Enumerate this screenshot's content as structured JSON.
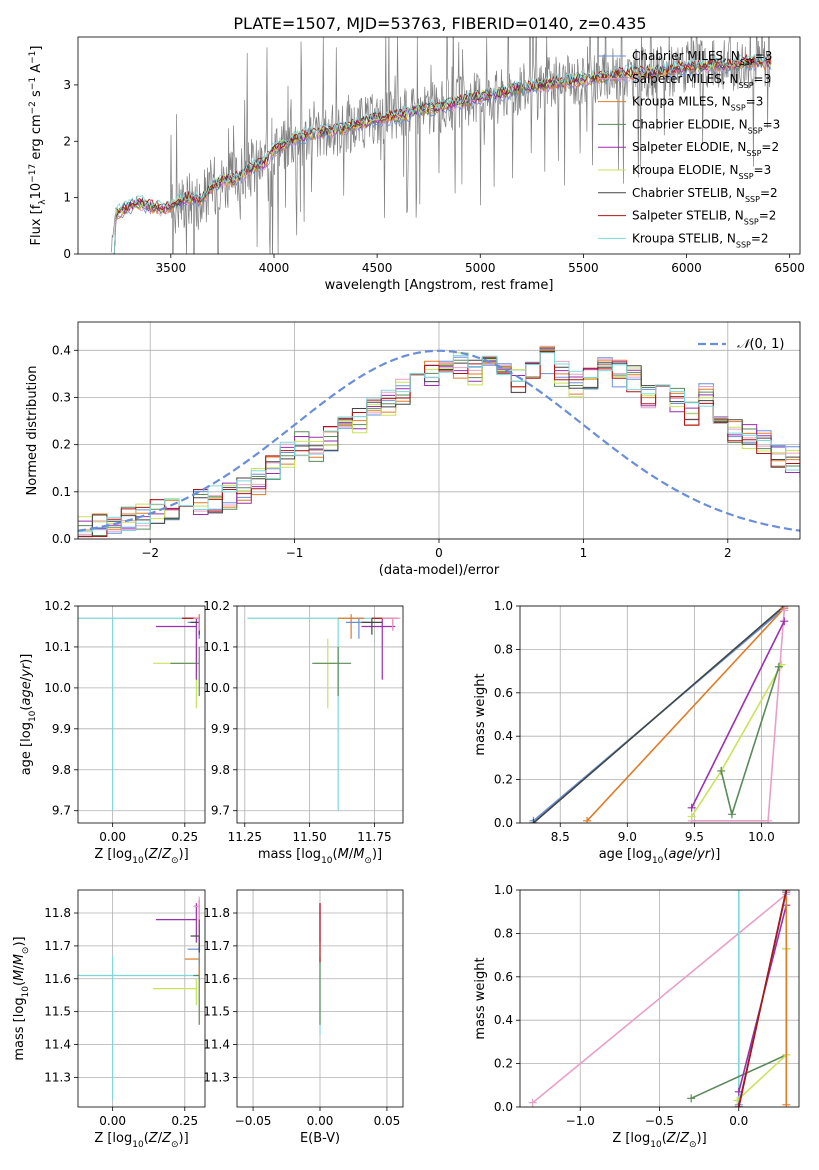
{
  "title": "PLATE=1507, MJD=53763, FIBERID=0140, z=0.435",
  "colors": {
    "chabrier_miles": "#6a8fd8",
    "salpeter_miles": "#e9a0c8",
    "kroupa_miles": "#e07b26",
    "chabrier_elodie": "#5a8a5a",
    "salpeter_elodie": "#9a2fb0",
    "kroupa_elodie": "#c9e35a",
    "chabrier_stelib": "#444444",
    "salpeter_stelib": "#b01515",
    "kroupa_stelib": "#7dd8dc",
    "data": "#808080",
    "gauss": "#6a8fd8",
    "grid": "#b0b0b0"
  },
  "chart_data": [
    {
      "id": "spectrum",
      "type": "line",
      "xlabel": "wavelength [Angstrom, rest frame]",
      "ylabel": "Flux [f_λ 10^-17 erg cm^-2 s^-1 A^-1]",
      "xlim": [
        3050,
        6550
      ],
      "ylim": [
        0,
        3.85
      ],
      "xticks": [
        3500,
        4000,
        4500,
        5000,
        5500,
        6000,
        6500
      ],
      "yticks": [
        0,
        1,
        2,
        3
      ],
      "continuum": {
        "x": [
          3210,
          3230,
          3250,
          3300,
          3350,
          3400,
          3450,
          3500,
          3550,
          3600,
          3650,
          3700,
          3750,
          3800,
          3850,
          3900,
          3950,
          4000,
          4100,
          4200,
          4300,
          4400,
          4500,
          4600,
          4700,
          4800,
          4900,
          5000,
          5100,
          5200,
          5300,
          5400,
          5500,
          5600,
          5700,
          5800,
          5900,
          6000,
          6100,
          6200,
          6300,
          6400
        ],
        "y": [
          0,
          0.7,
          0.75,
          0.85,
          0.9,
          0.85,
          0.8,
          0.85,
          0.95,
          1.0,
          0.95,
          1.2,
          1.3,
          1.3,
          1.4,
          1.55,
          1.6,
          1.85,
          2.05,
          2.15,
          2.2,
          2.3,
          2.4,
          2.45,
          2.55,
          2.6,
          2.7,
          2.8,
          2.85,
          2.95,
          3.0,
          3.05,
          3.1,
          3.15,
          3.2,
          3.2,
          3.25,
          3.3,
          3.35,
          3.35,
          3.4,
          3.4
        ]
      },
      "legend": [
        {
          "label": "Chabrier MILES",
          "nssp": "3",
          "key": "chabrier_miles"
        },
        {
          "label": "Salpeter MILES",
          "nssp": "3",
          "key": "salpeter_miles"
        },
        {
          "label": "Kroupa MILES",
          "nssp": "3",
          "key": "kroupa_miles"
        },
        {
          "label": "Chabrier ELODIE",
          "nssp": "3",
          "key": "chabrier_elodie"
        },
        {
          "label": "Salpeter ELODIE",
          "nssp": "2",
          "key": "salpeter_elodie"
        },
        {
          "label": "Kroupa ELODIE",
          "nssp": "3",
          "key": "kroupa_elodie"
        },
        {
          "label": "Chabrier STELIB",
          "nssp": "2",
          "key": "chabrier_stelib"
        },
        {
          "label": "Salpeter STELIB",
          "nssp": "2",
          "key": "salpeter_stelib"
        },
        {
          "label": "Kroupa STELIB",
          "nssp": "2",
          "key": "kroupa_stelib"
        }
      ],
      "legend_position": "right"
    },
    {
      "id": "residuals",
      "type": "histogram",
      "xlabel": "(data-model)/error",
      "ylabel": "Normed distribution",
      "xlim": [
        -2.5,
        2.5
      ],
      "ylim": [
        0,
        0.46
      ],
      "xticks": [
        -2,
        -1,
        0,
        1,
        2
      ],
      "yticks": [
        0.0,
        0.1,
        0.2,
        0.3,
        0.4
      ],
      "gauss_label": "N(0,1)",
      "bin_edges_start": -2.5,
      "bin_width": 0.1,
      "base_heights": [
        0.02,
        0.025,
        0.03,
        0.04,
        0.05,
        0.06,
        0.065,
        0.07,
        0.075,
        0.085,
        0.09,
        0.1,
        0.12,
        0.15,
        0.18,
        0.2,
        0.19,
        0.21,
        0.23,
        0.25,
        0.27,
        0.29,
        0.31,
        0.33,
        0.35,
        0.36,
        0.37,
        0.35,
        0.38,
        0.36,
        0.34,
        0.36,
        0.38,
        0.35,
        0.33,
        0.34,
        0.36,
        0.35,
        0.34,
        0.3,
        0.31,
        0.29,
        0.27,
        0.3,
        0.26,
        0.23,
        0.22,
        0.2,
        0.18,
        0.17,
        0.15,
        0.14,
        0.12,
        0.11,
        0.1,
        0.08,
        0.07,
        0.06,
        0.055,
        0.05
      ],
      "legend_position": "top-right"
    },
    {
      "id": "age_vs_Z",
      "type": "errorbar",
      "xlabel": "Z [log10(Z/Z_sun)]",
      "ylabel": "age  [log10(age/yr)]",
      "xlim": [
        -0.12,
        0.32
      ],
      "ylim": [
        9.67,
        10.2
      ],
      "xticks": [
        0.0,
        0.25
      ],
      "yticks": [
        9.7,
        9.8,
        9.9,
        10.0,
        10.1,
        10.2
      ],
      "points": [
        {
          "key": "kroupa_stelib",
          "x": 0.0,
          "xerr": [
            0.12,
            0.3
          ],
          "y": 10.17,
          "yerr": [
            0.47,
            0.0
          ]
        },
        {
          "key": "kroupa_elodie",
          "x": 0.29,
          "xerr": [
            0.15,
            0.0
          ],
          "y": 10.06,
          "yerr": [
            0.11,
            0.05
          ]
        },
        {
          "key": "chabrier_elodie",
          "x": 0.3,
          "xerr": [
            0.1,
            0.0
          ],
          "y": 10.06,
          "yerr": [
            0.08,
            0.04
          ]
        },
        {
          "key": "salpeter_elodie",
          "x": 0.29,
          "xerr": [
            0.14,
            0.0
          ],
          "y": 10.15,
          "yerr": [
            0.13,
            0.02
          ]
        },
        {
          "key": "kroupa_miles",
          "x": 0.3,
          "xerr": [
            0.05,
            0.0
          ],
          "y": 10.17,
          "yerr": [
            0.05,
            0.01
          ]
        },
        {
          "key": "chabrier_miles",
          "x": 0.3,
          "xerr": [
            0.04,
            0.0
          ],
          "y": 10.16,
          "yerr": [
            0.04,
            0.01
          ]
        },
        {
          "key": "salpeter_stelib",
          "x": 0.3,
          "xerr": [
            0.06,
            0.0
          ],
          "y": 10.17,
          "yerr": [
            0.03,
            0.0
          ]
        },
        {
          "key": "chabrier_stelib",
          "x": 0.3,
          "xerr": [
            0.03,
            0.0
          ],
          "y": 10.16,
          "yerr": [
            0.03,
            0.01
          ]
        },
        {
          "key": "salpeter_miles",
          "x": 0.3,
          "xerr": [
            0.02,
            0.0
          ],
          "y": 10.17,
          "yerr": [
            0.03,
            0.0
          ]
        }
      ]
    },
    {
      "id": "age_vs_mass",
      "type": "errorbar",
      "xlabel": "mass [log10(M/M_sun)]",
      "ylabel": "",
      "xlim": [
        11.22,
        11.86
      ],
      "ylim": [
        9.67,
        10.2
      ],
      "xticks": [
        11.25,
        11.5,
        11.75
      ],
      "yticks": [
        9.7,
        9.8,
        9.9,
        10.0,
        10.1,
        10.2
      ],
      "points": [
        {
          "key": "kroupa_stelib",
          "x": 11.61,
          "xerr": [
            0.35,
            0.2
          ],
          "y": 10.17,
          "yerr": [
            0.47,
            0.0
          ]
        },
        {
          "key": "kroupa_elodie",
          "x": 11.57,
          "xerr": [
            0.05,
            0.03
          ],
          "y": 10.06,
          "yerr": [
            0.11,
            0.06
          ]
        },
        {
          "key": "chabrier_elodie",
          "x": 11.61,
          "xerr": [
            0.1,
            0.05
          ],
          "y": 10.06,
          "yerr": [
            0.08,
            0.04
          ]
        },
        {
          "key": "salpeter_elodie",
          "x": 11.78,
          "xerr": [
            0.08,
            0.05
          ],
          "y": 10.15,
          "yerr": [
            0.13,
            0.02
          ]
        },
        {
          "key": "kroupa_miles",
          "x": 11.66,
          "xerr": [
            0.05,
            0.05
          ],
          "y": 10.17,
          "yerr": [
            0.05,
            0.01
          ]
        },
        {
          "key": "chabrier_miles",
          "x": 11.69,
          "xerr": [
            0.05,
            0.04
          ],
          "y": 10.16,
          "yerr": [
            0.04,
            0.01
          ]
        },
        {
          "key": "salpeter_stelib",
          "x": 11.82,
          "xerr": [
            0.08,
            0.02
          ],
          "y": 10.17,
          "yerr": [
            0.03,
            0.0
          ]
        },
        {
          "key": "chabrier_stelib",
          "x": 11.74,
          "xerr": [
            0.04,
            0.04
          ],
          "y": 10.16,
          "yerr": [
            0.03,
            0.01
          ]
        },
        {
          "key": "salpeter_miles",
          "x": 11.82,
          "xerr": [
            0.04,
            0.03
          ],
          "y": 10.17,
          "yerr": [
            0.03,
            0.0
          ]
        }
      ]
    },
    {
      "id": "mass_weight_vs_age",
      "type": "line",
      "xlabel": "age  [log10(age/yr)]",
      "ylabel": "mass weight",
      "xlim": [
        8.2,
        10.28
      ],
      "ylim": [
        0,
        1.0
      ],
      "xticks": [
        8.5,
        9.0,
        9.5,
        10.0
      ],
      "yticks": [
        0.0,
        0.2,
        0.4,
        0.6,
        0.8,
        1.0
      ],
      "series": [
        {
          "key": "chabrier_miles",
          "x": [
            8.3,
            10.17
          ],
          "y": [
            0.01,
            0.99
          ]
        },
        {
          "key": "kroupa_stelib",
          "x": [
            8.3,
            10.17
          ],
          "y": [
            0.0,
            1.0
          ]
        },
        {
          "key": "chabrier_stelib",
          "x": [
            8.3,
            10.17
          ],
          "y": [
            0.0,
            1.0
          ]
        },
        {
          "key": "kroupa_miles",
          "x": [
            8.7,
            10.17
          ],
          "y": [
            0.01,
            0.99
          ]
        },
        {
          "key": "salpeter_miles",
          "x": [
            9.48,
            10.05,
            10.17
          ],
          "y": [
            0.01,
            0.01,
            0.98
          ]
        },
        {
          "key": "salpeter_elodie",
          "x": [
            9.48,
            10.17
          ],
          "y": [
            0.07,
            0.93
          ]
        },
        {
          "key": "kroupa_elodie",
          "x": [
            9.48,
            9.7,
            10.15
          ],
          "y": [
            0.03,
            0.24,
            0.73
          ]
        },
        {
          "key": "chabrier_elodie",
          "x": [
            9.7,
            9.78,
            10.13
          ],
          "y": [
            0.24,
            0.04,
            0.72
          ]
        }
      ]
    },
    {
      "id": "mass_vs_Z",
      "type": "errorbar",
      "xlabel": "Z [log10(Z/Z_sun)]",
      "ylabel": "mass [log10(M/M_sun)]",
      "xlim": [
        -0.12,
        0.32
      ],
      "ylim": [
        11.21,
        11.87
      ],
      "xticks": [
        0.0,
        0.25
      ],
      "yticks": [
        11.3,
        11.4,
        11.5,
        11.6,
        11.7,
        11.8
      ],
      "points": [
        {
          "key": "kroupa_stelib",
          "x": 0.0,
          "xerr": [
            0.12,
            0.3
          ],
          "y": 11.61,
          "yerr": [
            0.38,
            0.06
          ]
        },
        {
          "key": "kroupa_elodie",
          "x": 0.29,
          "xerr": [
            0.15,
            0.0
          ],
          "y": 11.57,
          "yerr": [
            0.05,
            0.03
          ]
        },
        {
          "key": "chabrier_elodie",
          "x": 0.3,
          "xerr": [
            0.02,
            0.0
          ],
          "y": 11.61,
          "yerr": [
            0.15,
            0.05
          ]
        },
        {
          "key": "salpeter_elodie",
          "x": 0.29,
          "xerr": [
            0.14,
            0.0
          ],
          "y": 11.78,
          "yerr": [
            0.07,
            0.05
          ]
        },
        {
          "key": "kroupa_miles",
          "x": 0.3,
          "xerr": [
            0.05,
            0.0
          ],
          "y": 11.66,
          "yerr": [
            0.05,
            0.05
          ]
        },
        {
          "key": "chabrier_miles",
          "x": 0.3,
          "xerr": [
            0.04,
            0.0
          ],
          "y": 11.69,
          "yerr": [
            0.05,
            0.04
          ]
        },
        {
          "key": "salpeter_stelib",
          "x": 0.3,
          "xerr": [
            0.02,
            0.0
          ],
          "y": 11.82,
          "yerr": [
            0.05,
            0.02
          ]
        },
        {
          "key": "chabrier_stelib",
          "x": 0.3,
          "xerr": [
            0.03,
            0.0
          ],
          "y": 11.73,
          "yerr": [
            0.05,
            0.04
          ]
        },
        {
          "key": "salpeter_miles",
          "x": 0.3,
          "xerr": [
            0.02,
            0.0
          ],
          "y": 11.82,
          "yerr": [
            0.04,
            0.03
          ]
        }
      ]
    },
    {
      "id": "mass_vs_ebv",
      "type": "errorbar",
      "xlabel": "E(B-V)",
      "ylabel": "",
      "xlim": [
        -0.062,
        0.062
      ],
      "ylim": [
        11.21,
        11.87
      ],
      "xticks": [
        -0.05,
        0.0,
        0.05
      ],
      "yticks": [
        11.3,
        11.4,
        11.5,
        11.6,
        11.7,
        11.8
      ],
      "points": [
        {
          "key": "kroupa_stelib",
          "x": 0.0,
          "xerr": [
            0.0,
            0.0
          ],
          "y": 11.61,
          "yerr": [
            0.18,
            0.06
          ]
        },
        {
          "key": "chabrier_elodie",
          "x": 0.0,
          "xerr": [
            0.0,
            0.0
          ],
          "y": 11.61,
          "yerr": [
            0.15,
            0.05
          ]
        },
        {
          "key": "salpeter_elodie",
          "x": 0.0,
          "xerr": [
            0.0,
            0.0
          ],
          "y": 11.78,
          "yerr": [
            0.07,
            0.05
          ]
        },
        {
          "key": "salpeter_stelib",
          "x": 0.0,
          "xerr": [
            0.0,
            0.0
          ],
          "y": 11.75,
          "yerr": [
            0.1,
            0.08
          ]
        }
      ]
    },
    {
      "id": "mass_weight_vs_Z",
      "type": "line",
      "xlabel": "Z [log10(Z/Z_sun)]",
      "ylabel": "mass weight",
      "xlim": [
        -1.38,
        0.38
      ],
      "ylim": [
        0,
        1.0
      ],
      "xticks": [
        -1.0,
        -0.5,
        0.0
      ],
      "yticks": [
        0.0,
        0.2,
        0.4,
        0.6,
        0.8,
        1.0
      ],
      "series": [
        {
          "key": "salpeter_miles",
          "x": [
            -1.3,
            0.3
          ],
          "y": [
            0.02,
            0.98
          ]
        },
        {
          "key": "kroupa_stelib",
          "x": [
            0.0,
            0.0
          ],
          "y": [
            0.0,
            1.0
          ]
        },
        {
          "key": "chabrier_elodie",
          "x": [
            -0.3,
            0.3,
            0.3
          ],
          "y": [
            0.04,
            0.24,
            0.73
          ]
        },
        {
          "key": "kroupa_elodie",
          "x": [
            -0.01,
            0.3,
            0.3
          ],
          "y": [
            0.03,
            0.24,
            0.73
          ]
        },
        {
          "key": "salpeter_elodie",
          "x": [
            0.0,
            0.3
          ],
          "y": [
            0.07,
            0.93
          ]
        },
        {
          "key": "kroupa_miles",
          "x": [
            0.3,
            0.3
          ],
          "y": [
            0.01,
            0.99
          ]
        },
        {
          "key": "chabrier_miles",
          "x": [
            0.0,
            0.3
          ],
          "y": [
            0.01,
            0.99
          ]
        },
        {
          "key": "chabrier_stelib",
          "x": [
            0.0,
            0.3
          ],
          "y": [
            0.0,
            1.0
          ]
        },
        {
          "key": "salpeter_stelib",
          "x": [
            0.0,
            0.3
          ],
          "y": [
            0.0,
            1.0
          ]
        }
      ]
    }
  ]
}
